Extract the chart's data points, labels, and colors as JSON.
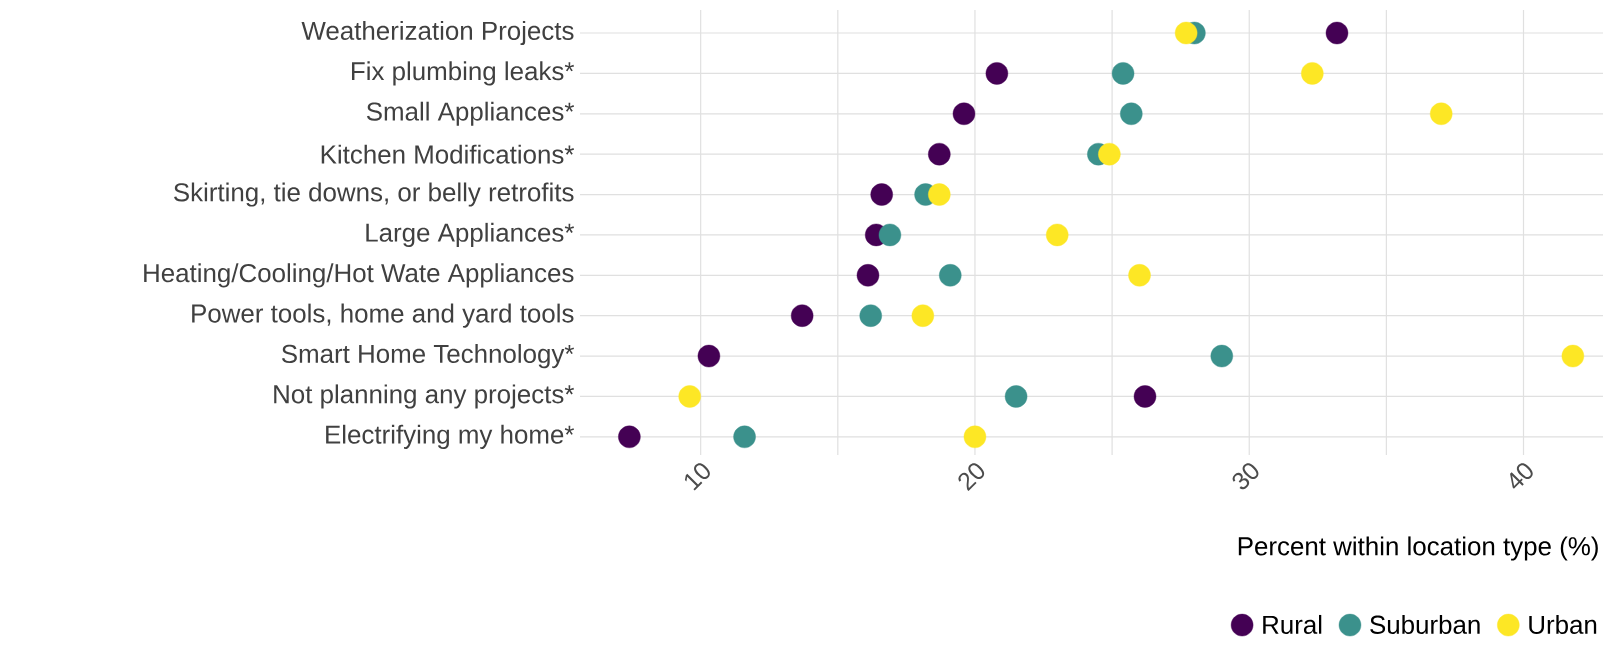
{
  "chart_data": {
    "type": "scatter",
    "orientation": "horizontal",
    "xlabel": "Percent within location type (%)",
    "categories": [
      "Weatherization Projects",
      "Fix plumbing leaks*",
      "Small Appliances*",
      "Kitchen Modifications*",
      "Skirting, tie downs, or belly retrofits",
      "Large Appliances*",
      "Heating/Cooling/Hot Wate Appliances",
      "Power tools, home and yard tools",
      "Smart Home Technology*",
      "Not planning any projects*",
      "Electrifying my home*"
    ],
    "series": [
      {
        "name": "Rural",
        "color": "#440154",
        "values": [
          33.2,
          20.8,
          19.6,
          18.7,
          16.6,
          16.4,
          16.1,
          13.7,
          10.3,
          26.2,
          7.4
        ]
      },
      {
        "name": "Suburban",
        "color": "#3b918c",
        "values": [
          28.0,
          25.4,
          25.7,
          24.5,
          18.2,
          16.9,
          19.1,
          16.2,
          29.0,
          21.5,
          11.6
        ]
      },
      {
        "name": "Urban",
        "color": "#fde725",
        "values": [
          27.7,
          32.3,
          37.0,
          24.9,
          18.7,
          23.0,
          26.0,
          18.1,
          41.8,
          9.6,
          20.0
        ]
      }
    ],
    "xlim": [
      5.6,
      42.9
    ],
    "xticks": [
      10,
      20,
      30,
      40
    ],
    "grid": true,
    "legend": "bottom right"
  }
}
